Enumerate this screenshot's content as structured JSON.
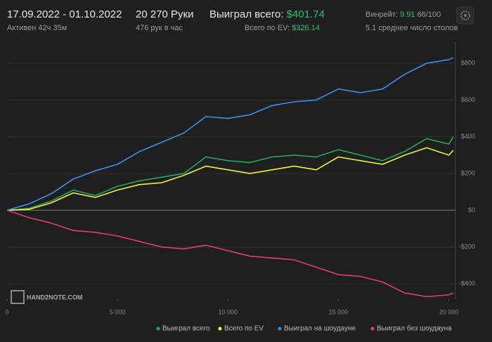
{
  "header": {
    "date_range": "17.09.2022 - 01.10.2022",
    "active": "Активен 42ч 35м",
    "hands": "20 270 Руки",
    "hands_per_hour": "476 рук в час",
    "won_label": "Выиграл всего:",
    "won_value": "$401.74",
    "ev_label": "Всего по EV:",
    "ev_value": "$326.14",
    "winrate_label": "Винрейт:",
    "winrate_value": "9.91",
    "winrate_unit": "66/100",
    "tables": "5.1 среднее число столов"
  },
  "watermark": "HAND2NOTE.COM",
  "chart_data": {
    "type": "line",
    "x": [
      0,
      1000,
      2000,
      3000,
      4000,
      5000,
      6000,
      7000,
      8000,
      9000,
      10000,
      11000,
      12000,
      13000,
      14000,
      15000,
      16000,
      17000,
      18000,
      19000,
      20000,
      20200
    ],
    "series": [
      {
        "name": "Выиграл всего",
        "color": "#27a85a",
        "values": [
          0,
          10,
          50,
          110,
          80,
          130,
          160,
          180,
          200,
          290,
          270,
          260,
          290,
          300,
          290,
          330,
          300,
          270,
          320,
          390,
          360,
          400
        ]
      },
      {
        "name": "Всего по EV",
        "color": "#f0f03c",
        "values": [
          0,
          5,
          40,
          95,
          70,
          110,
          140,
          150,
          190,
          240,
          220,
          200,
          220,
          240,
          220,
          290,
          270,
          250,
          300,
          340,
          300,
          326
        ]
      },
      {
        "name": "Выиграл на шоудауне",
        "color": "#3d8ef0",
        "values": [
          0,
          35,
          90,
          170,
          215,
          250,
          320,
          370,
          420,
          510,
          500,
          520,
          570,
          590,
          600,
          660,
          640,
          660,
          740,
          800,
          820,
          830
        ]
      },
      {
        "name": "Выиграл без шоудауна",
        "color": "#e23d6e",
        "values": [
          0,
          -40,
          -70,
          -110,
          -120,
          -140,
          -170,
          -200,
          -210,
          -190,
          -220,
          -250,
          -260,
          -270,
          -310,
          -350,
          -360,
          -390,
          -450,
          -470,
          -460,
          -450
        ]
      }
    ],
    "xlim": [
      0,
      20300
    ],
    "ylim": [
      -480,
      915
    ],
    "xticks": [
      0,
      {
        "value": 5000,
        "label": "5 000"
      },
      {
        "value": 10000,
        "label": "10 000"
      },
      {
        "value": 15000,
        "label": "15 000"
      },
      {
        "value": 20000,
        "label": "20 000"
      }
    ],
    "yticks": [
      {
        "value": -400,
        "label": "-$400"
      },
      {
        "value": -200,
        "label": "-$200"
      },
      {
        "value": 0,
        "label": "$0"
      },
      {
        "value": 200,
        "label": "$200"
      },
      {
        "value": 400,
        "label": "$400"
      },
      {
        "value": 600,
        "label": "$600"
      },
      {
        "value": 800,
        "label": "$800"
      }
    ],
    "grid": true
  }
}
